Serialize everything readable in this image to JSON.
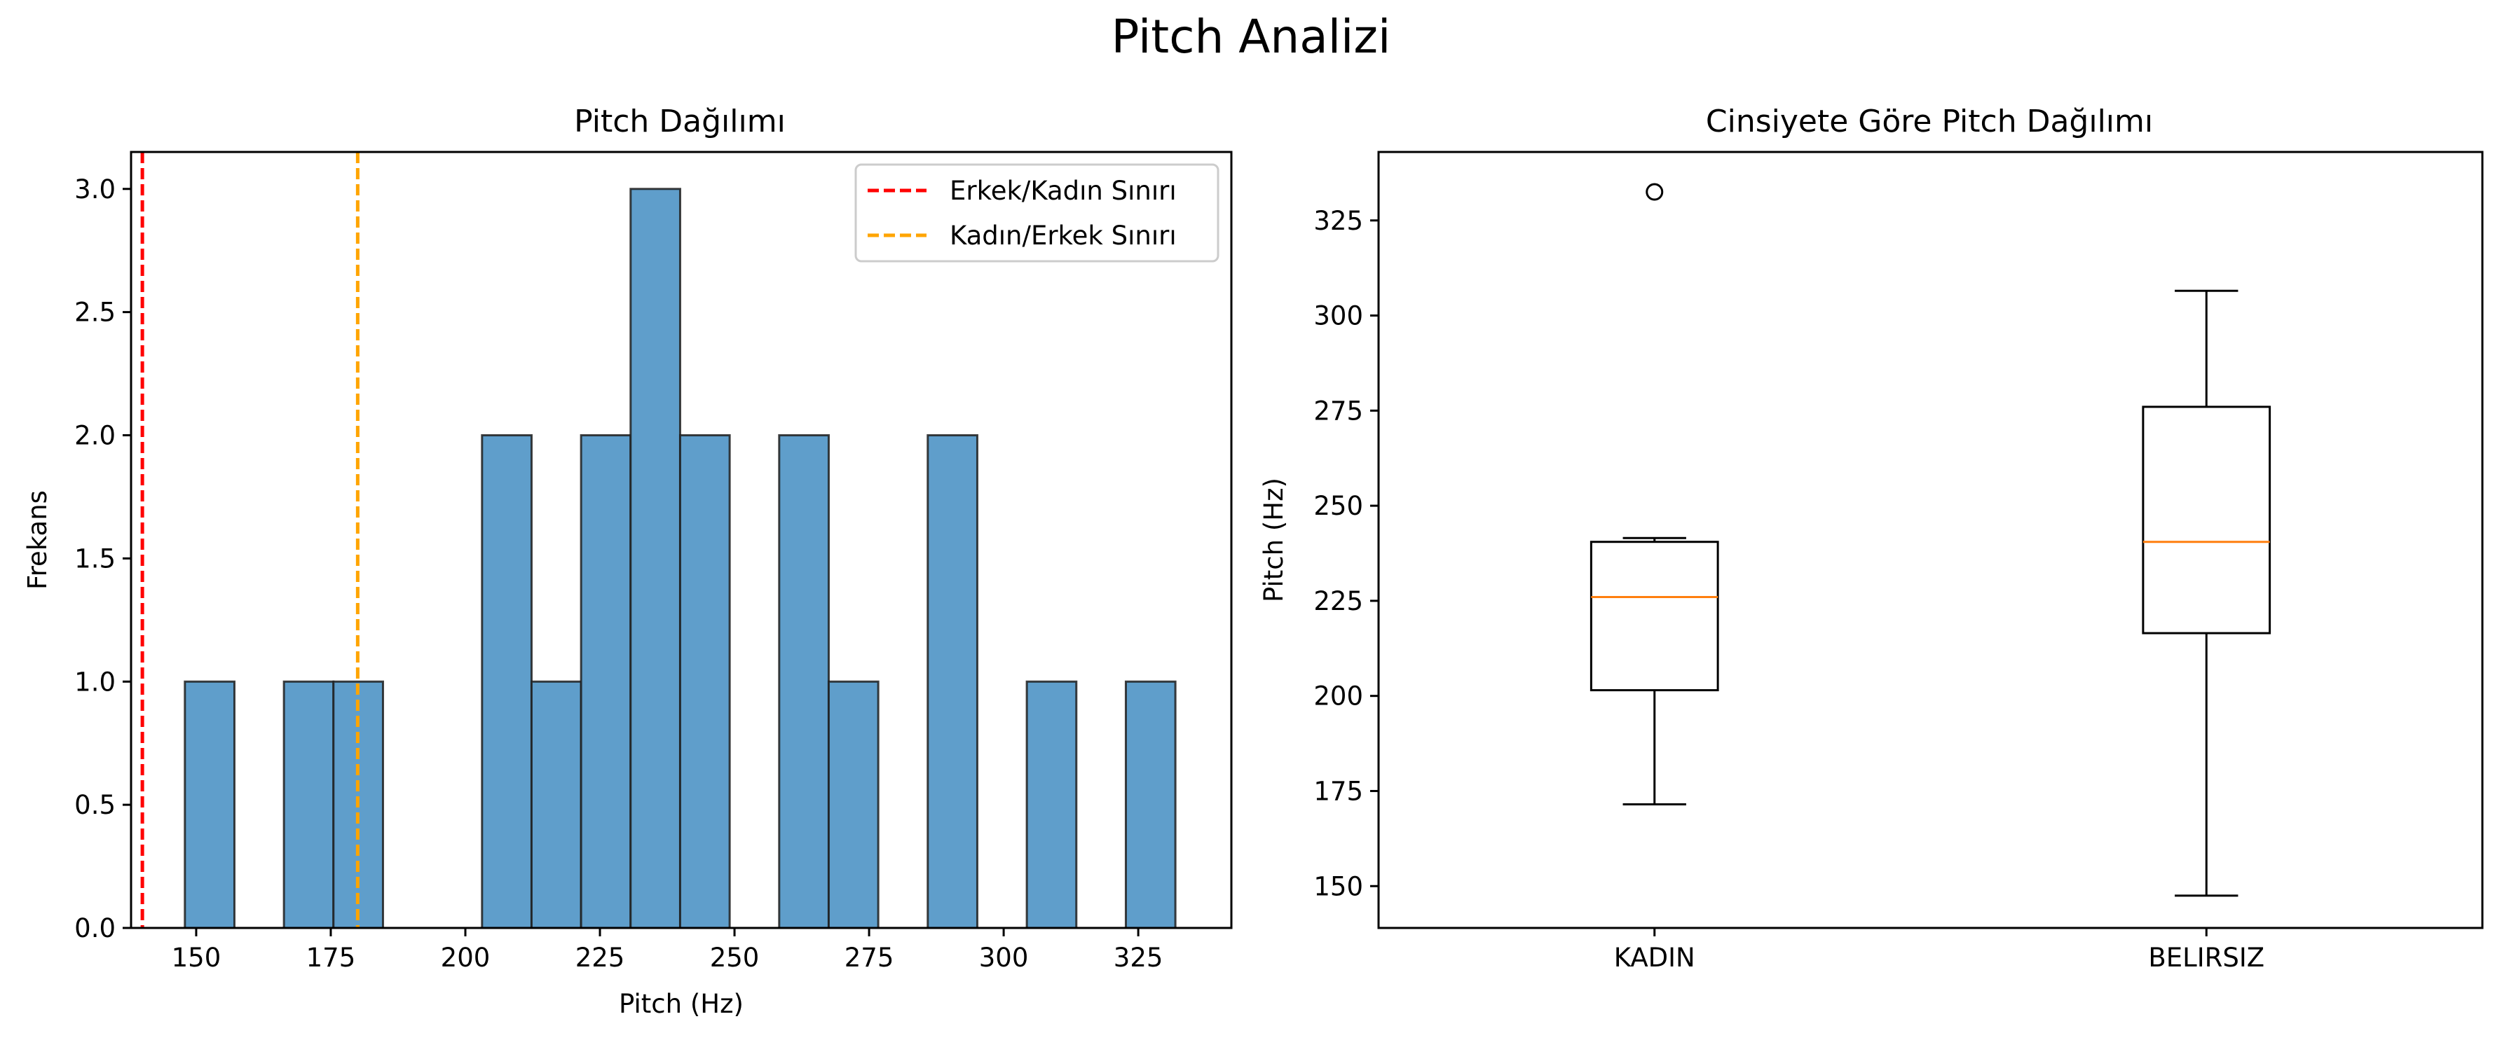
{
  "suptitle": "Pitch Analizi",
  "chart_data": [
    {
      "type": "bar",
      "title": "Pitch Dağılımı",
      "xlabel": "Pitch (Hz)",
      "ylabel": "Frekans",
      "xlim": [
        137.9,
        342.3
      ],
      "ylim": [
        0,
        3.15
      ],
      "xticks": [
        150,
        175,
        200,
        225,
        250,
        275,
        300,
        325
      ],
      "yticks": [
        0.0,
        0.5,
        1.0,
        1.5,
        2.0,
        2.5,
        3.0
      ],
      "bin_edges": [
        147.9,
        157.1,
        166.3,
        175.5,
        184.7,
        193.9,
        203.1,
        212.3,
        221.5,
        230.7,
        239.9,
        249.1,
        258.3,
        267.5,
        276.7,
        285.9,
        295.1,
        304.3,
        313.5,
        322.7,
        331.9
      ],
      "counts": [
        1,
        0,
        1,
        1,
        0,
        0,
        2,
        1,
        2,
        3,
        2,
        0,
        2,
        1,
        0,
        2,
        0,
        1,
        0,
        1
      ],
      "bar_color": "#5f9ecb",
      "lines": [
        {
          "name": "Erkek/Kadın Sınırı",
          "x": 140,
          "color": "#ff0000",
          "style": "dashed"
        },
        {
          "name": "Kadın/Erkek Sınırı",
          "x": 180,
          "color": "#ffa500",
          "style": "dashed"
        }
      ],
      "legend_position": "top-right"
    },
    {
      "type": "box",
      "title": "Cinsiyete Göre Pitch Dağılımı",
      "xlabel": "",
      "ylabel": "Pitch (Hz)",
      "ylim": [
        139,
        343
      ],
      "yticks": [
        150,
        175,
        200,
        225,
        250,
        275,
        300,
        325
      ],
      "categories": [
        "KADIN",
        "BELIRSIZ"
      ],
      "boxes": [
        {
          "name": "KADIN",
          "whisker_low": 171.5,
          "q1": 201.5,
          "median": 226,
          "q3": 240.5,
          "whisker_high": 241.5,
          "outliers": [
            332.5
          ]
        },
        {
          "name": "BELIRSIZ",
          "whisker_low": 147.5,
          "q1": 216.5,
          "median": 240.5,
          "q3": 276,
          "whisker_high": 306.5,
          "outliers": []
        }
      ],
      "median_color": "#ff7f0e"
    }
  ]
}
